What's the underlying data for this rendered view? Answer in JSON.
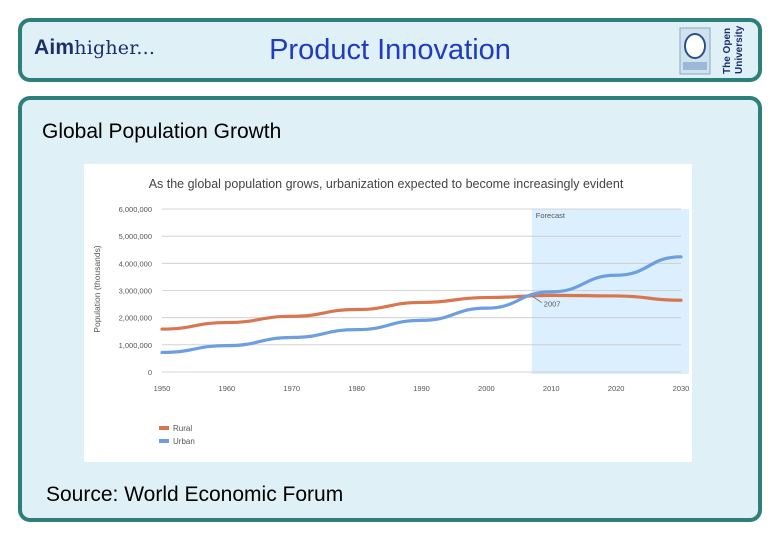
{
  "header": {
    "logo_text": "higher...",
    "logo_letter": "Aim",
    "title": "Product Innovation",
    "ou_logo_line1": "The Open",
    "ou_logo_line2": "University"
  },
  "main": {
    "section_title": "Global Population Growth",
    "source": "Source: World Economic Forum"
  },
  "chart_data": {
    "type": "line",
    "title": "As the global population grows, urbanization expected to become increasingly evident",
    "ylabel": "Population (thousands)",
    "xlabel": "",
    "x": [
      1950,
      1960,
      1970,
      1980,
      1990,
      2000,
      2010,
      2020,
      2030
    ],
    "ylim": [
      0,
      6000000
    ],
    "yticks": [
      "6,000,000",
      "5,000,000",
      "4,000,000",
      "3,000,000",
      "2,000,000",
      "1,000,000",
      "0"
    ],
    "xticks": [
      "1950",
      "1960",
      "1970",
      "1980",
      "1990",
      "2000",
      "2010",
      "2020",
      "2030"
    ],
    "series": [
      {
        "name": "Rural",
        "color": "#d9764f",
        "values": [
          1580000,
          1820000,
          2050000,
          2300000,
          2560000,
          2740000,
          2820000,
          2800000,
          2640000
        ]
      },
      {
        "name": "Urban",
        "color": "#6d9fe0",
        "values": [
          720000,
          970000,
          1270000,
          1560000,
          1900000,
          2350000,
          2950000,
          3560000,
          4240000
        ]
      }
    ],
    "forecast": {
      "label": "Forecast",
      "start": 2007,
      "end": 2030
    },
    "annotation": {
      "label": "2007",
      "x": 2007,
      "y": 2850000
    }
  }
}
